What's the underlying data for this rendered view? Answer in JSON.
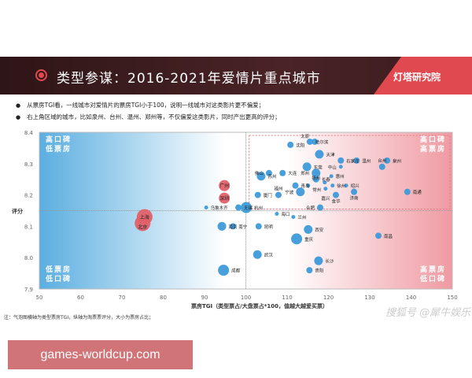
{
  "header": {
    "title": "类型参谋：2016-2021年爱情片重点城市",
    "logo": "灯塔研究院"
  },
  "bullets": [
    "从票房TGI看，一线城市对爱情片的票房TGI小于100，说明一线城市对这类影片更不偏爱；",
    "右上角区域的城市，比如泉州、台州、温州、郑州等，不仅偏爱这类影片，同时产出更高的评分；"
  ],
  "note": "注：气泡图横轴为类型票房TGI，纵轴为淘票票评分，大小为票房占比；",
  "watermark": "搜狐号 @犀牛娱乐",
  "site_banner": "games-worldcup.com",
  "chart_data": {
    "type": "scatter",
    "xlabel": "票房TGI（类型票占/大盘票占*100，值越大越爱买票）",
    "ylabel": "评分",
    "xlim": [
      50,
      150
    ],
    "ylim": [
      7.9,
      8.4
    ],
    "xticks": [
      "50",
      "60",
      "70",
      "80",
      "90",
      "100",
      "110",
      "120",
      "130",
      "140",
      "150"
    ],
    "yticks": [
      "7.9",
      "8.0",
      "8.1",
      "8.2",
      "8.3",
      "8.4"
    ],
    "reference_lines": {
      "x": 100,
      "y": 8.15
    },
    "quadrants": {
      "top_left": "高口碑 低票房",
      "bottom_left": "低票房 低口碑",
      "top_right": "高口碑 高票房",
      "bottom_right": "高票房 低口碑"
    },
    "colors": {
      "first_tier": "#e0616a",
      "other": "#3d9ad9"
    },
    "points": [
      {
        "city": "上海",
        "x": 75.5,
        "y": 8.13,
        "size": 5,
        "tier": "first"
      },
      {
        "city": "北京",
        "x": 75,
        "y": 8.11,
        "size": 5,
        "tier": "first"
      },
      {
        "city": "广州",
        "x": 94.8,
        "y": 8.23,
        "size": 4,
        "tier": "first"
      },
      {
        "city": "深圳",
        "x": 94.8,
        "y": 8.19,
        "size": 4,
        "tier": "first"
      },
      {
        "city": "乌鲁木齐",
        "x": 90.4,
        "y": 8.16,
        "size": 1
      },
      {
        "city": "无锡",
        "x": 98.2,
        "y": 8.16,
        "size": 2
      },
      {
        "city": "杭州",
        "x": 100.1,
        "y": 8.16,
        "size": 4
      },
      {
        "city": "南京",
        "x": 94.2,
        "y": 8.1,
        "size": 3
      },
      {
        "city": "南宁",
        "x": 96.9,
        "y": 8.1,
        "size": 2
      },
      {
        "city": "昆明",
        "x": 103.1,
        "y": 8.1,
        "size": 2
      },
      {
        "city": "武汉",
        "x": 102.8,
        "y": 8.01,
        "size": 3
      },
      {
        "city": "成都",
        "x": 94.6,
        "y": 7.96,
        "size": 4
      },
      {
        "city": "苏州",
        "x": 103.7,
        "y": 8.26,
        "size": 3
      },
      {
        "city": "厦门",
        "x": 102.9,
        "y": 8.2,
        "size": 2
      },
      {
        "city": "沈阳",
        "x": 110.8,
        "y": 8.36,
        "size": 2
      },
      {
        "city": "哈尔滨",
        "x": 115.5,
        "y": 8.37,
        "size": 2
      },
      {
        "city": "太原",
        "x": 116.7,
        "y": 8.37,
        "size": 2
      },
      {
        "city": "天津",
        "x": 117.8,
        "y": 8.33,
        "size": 3
      },
      {
        "city": "石家庄",
        "x": 123,
        "y": 8.31,
        "size": 2
      },
      {
        "city": "温州",
        "x": 126.8,
        "y": 8.31,
        "size": 2
      },
      {
        "city": "泉州",
        "x": 134.2,
        "y": 8.31,
        "size": 2
      },
      {
        "city": "中山",
        "x": 123,
        "y": 8.29,
        "size": 1
      },
      {
        "city": "台州",
        "x": 133,
        "y": 8.29,
        "size": 2
      },
      {
        "city": "东莞",
        "x": 114.8,
        "y": 8.29,
        "size": 3
      },
      {
        "city": "郑州",
        "x": 117,
        "y": 8.27,
        "size": 3
      },
      {
        "city": "佛山",
        "x": 105.6,
        "y": 8.27,
        "size": 2
      },
      {
        "city": "大连",
        "x": 108.9,
        "y": 8.27,
        "size": 2
      },
      {
        "city": "长春",
        "x": 117,
        "y": 8.25,
        "size": 2
      },
      {
        "city": "惠州",
        "x": 120.7,
        "y": 8.26,
        "size": 1
      },
      {
        "city": "青岛",
        "x": 112,
        "y": 8.23,
        "size": 2
      },
      {
        "city": "常州",
        "x": 115.1,
        "y": 8.23,
        "size": 1
      },
      {
        "city": "扬州",
        "x": 119.1,
        "y": 8.24,
        "size": 1
      },
      {
        "city": "徐州",
        "x": 121,
        "y": 8.23,
        "size": 1
      },
      {
        "city": "绍兴",
        "x": 124.3,
        "y": 8.23,
        "size": 1
      },
      {
        "city": "嘉兴",
        "x": 119.3,
        "y": 8.22,
        "size": 1
      },
      {
        "city": "宁波",
        "x": 113.2,
        "y": 8.21,
        "size": 3
      },
      {
        "city": "济南",
        "x": 126.2,
        "y": 8.21,
        "size": 2
      },
      {
        "city": "金华",
        "x": 121.8,
        "y": 8.2,
        "size": 2
      },
      {
        "city": "南通",
        "x": 139.1,
        "y": 8.21,
        "size": 2
      },
      {
        "city": "福州",
        "x": 107.9,
        "y": 8.2,
        "size": 2
      },
      {
        "city": "合肥",
        "x": 118,
        "y": 8.16,
        "size": 2
      },
      {
        "city": "海口",
        "x": 107.5,
        "y": 8.14,
        "size": 1
      },
      {
        "city": "兰州",
        "x": 111.5,
        "y": 8.13,
        "size": 1
      },
      {
        "city": "西安",
        "x": 115.1,
        "y": 8.09,
        "size": 3
      },
      {
        "city": "重庆",
        "x": 112.3,
        "y": 8.06,
        "size": 4
      },
      {
        "city": "南昌",
        "x": 132.1,
        "y": 8.07,
        "size": 2
      },
      {
        "city": "长沙",
        "x": 117.6,
        "y": 7.99,
        "size": 3
      },
      {
        "city": "贵阳",
        "x": 115.4,
        "y": 7.96,
        "size": 2
      }
    ]
  }
}
